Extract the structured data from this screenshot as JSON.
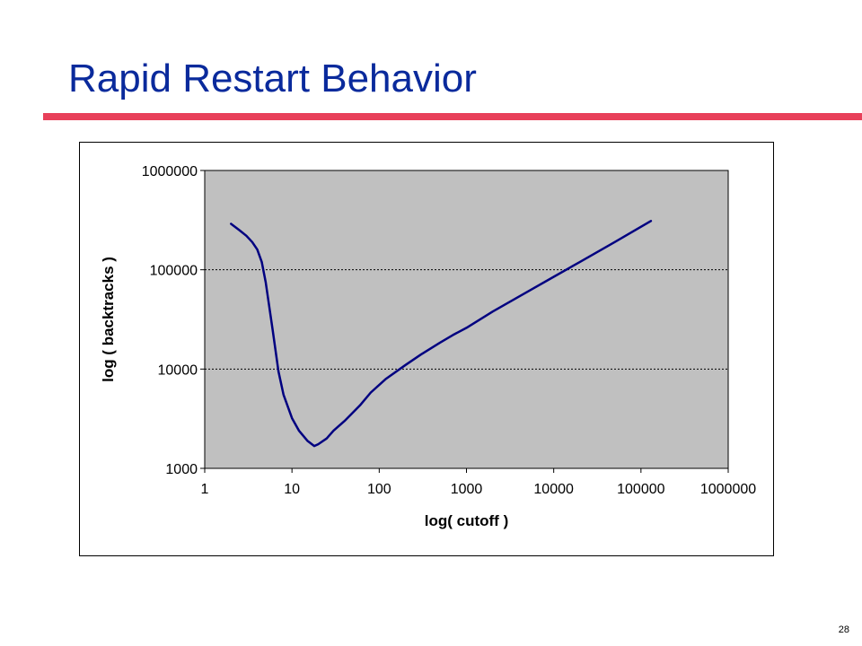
{
  "slide": {
    "title": "Rapid Restart Behavior",
    "page_number": "28",
    "title_color": "#0a2a9c",
    "rule_color": "#e8405a"
  },
  "chart_data": {
    "type": "line",
    "x_scale": "log",
    "y_scale": "log",
    "xlabel": "log( cutoff )",
    "ylabel": "log ( backtracks )",
    "xlim": [
      1,
      1000000
    ],
    "ylim": [
      1000,
      1000000
    ],
    "x_ticks": [
      "1",
      "10",
      "100",
      "1000",
      "10000",
      "100000",
      "1000000"
    ],
    "y_ticks": [
      "1000",
      "10000",
      "100000",
      "1000000"
    ],
    "y_tick_values": [
      1000,
      10000,
      100000,
      1000000
    ],
    "x_tick_values": [
      1,
      10,
      100,
      1000,
      10000,
      100000,
      1000000
    ],
    "grid": "dotted horizontal",
    "plot_background": "#c0c0c0",
    "line_color": "#000080",
    "series": [
      {
        "x": [
          2,
          2.5,
          3,
          3.5,
          4,
          4.5,
          5,
          6,
          7,
          8,
          10,
          12,
          15,
          18,
          20,
          25,
          30,
          40,
          60,
          80,
          120,
          200,
          300,
          500,
          700,
          1000,
          2000,
          5000,
          10000,
          20000,
          50000,
          130000
        ],
        "y": [
          290000,
          250000,
          220000,
          190000,
          160000,
          120000,
          75000,
          25000,
          9500,
          5500,
          3200,
          2400,
          1900,
          1680,
          1750,
          2000,
          2400,
          3000,
          4300,
          5800,
          8000,
          11000,
          14000,
          18500,
          22000,
          26000,
          38000,
          60000,
          85000,
          120000,
          190000,
          310000
        ]
      }
    ]
  }
}
